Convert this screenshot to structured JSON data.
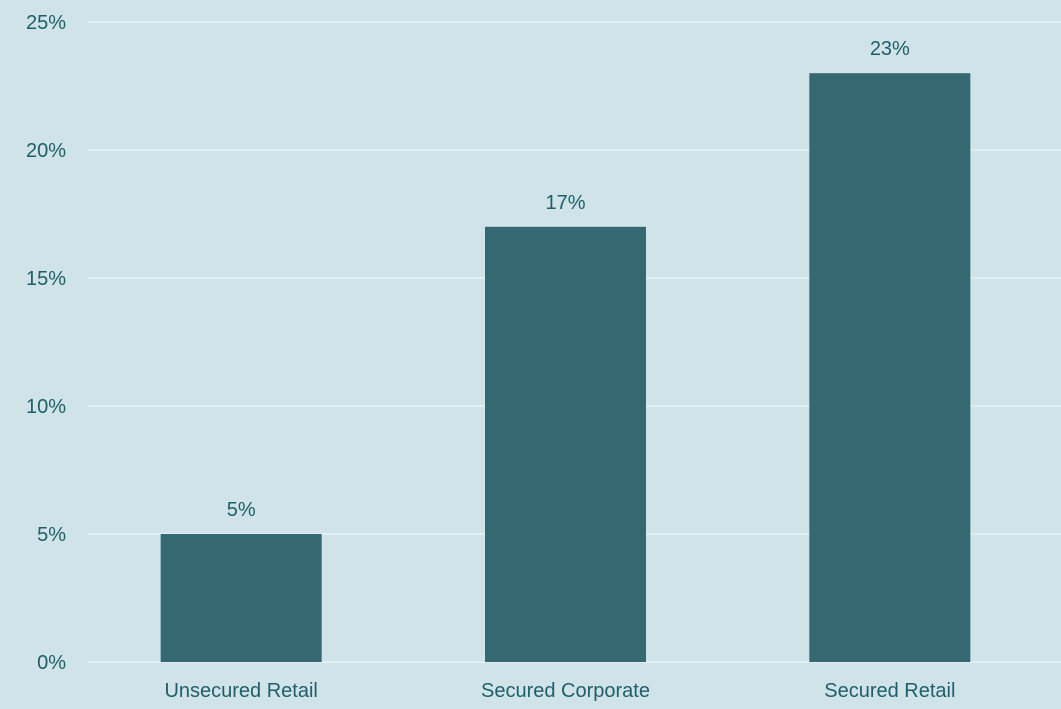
{
  "chart_data": {
    "type": "bar",
    "categories": [
      "Unsecured Retail",
      "Secured Corporate",
      "Secured Retail"
    ],
    "values": [
      5,
      17,
      23
    ],
    "data_labels": [
      "5%",
      "17%",
      "23%"
    ],
    "title": "",
    "xlabel": "",
    "ylabel": "",
    "ylim": [
      0,
      25
    ],
    "yticks": [
      0,
      5,
      10,
      15,
      20,
      25
    ],
    "ytick_labels": [
      "0%",
      "5%",
      "10%",
      "15%",
      "20%",
      "25%"
    ],
    "grid": true,
    "legend": "none",
    "colors": {
      "background": "#cfe3e8",
      "bar": "#356871",
      "gridline": "#e8f3f5",
      "text": "#1f5f69"
    }
  }
}
